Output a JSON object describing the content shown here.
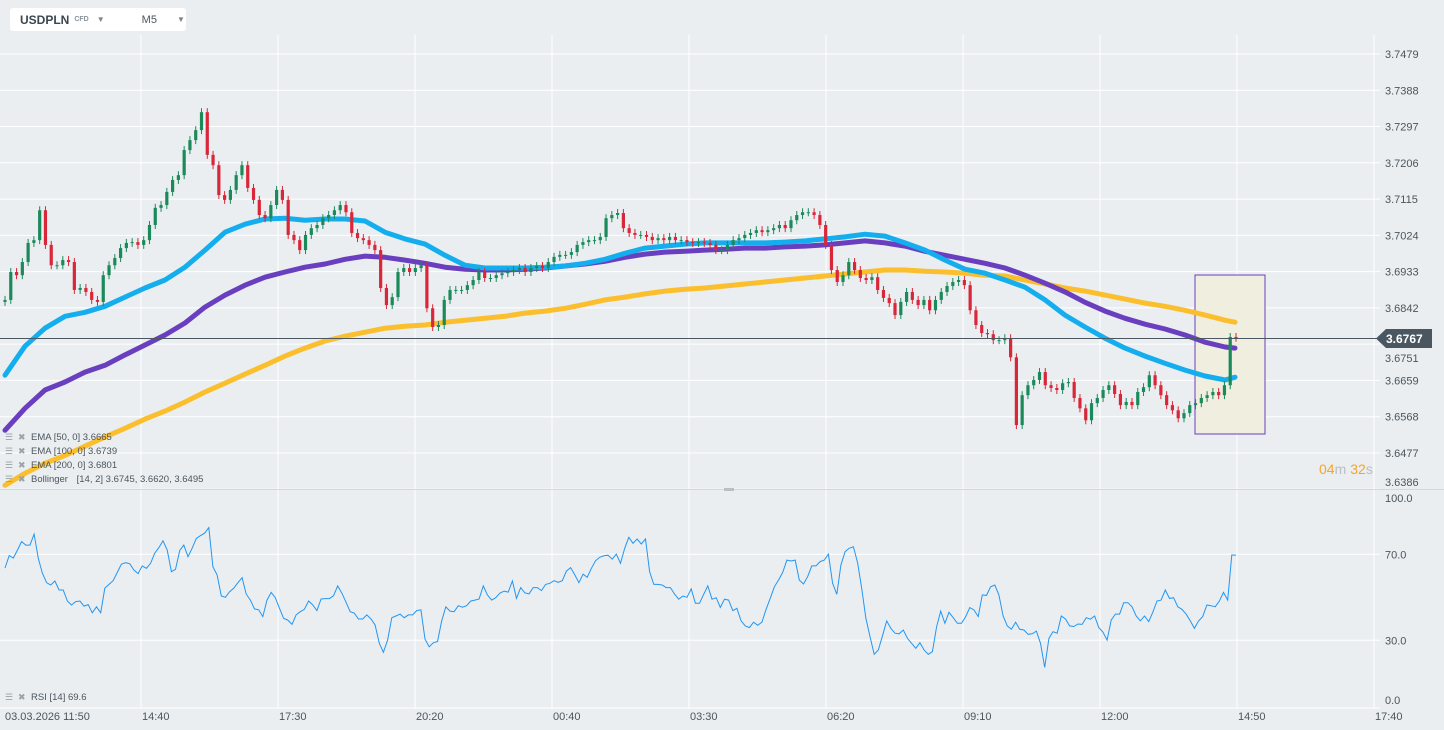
{
  "toolbar": {
    "symbol": "USDPLN",
    "instrument_type": "CFD",
    "timeframe": "M5"
  },
  "price_tag": {
    "value": "3.6767",
    "color": "#4a5761"
  },
  "countdown": {
    "minutes": "04",
    "min_unit": "m",
    "seconds": "32",
    "sec_unit": "s",
    "color": "#f5a623"
  },
  "legend": [
    {
      "label": "EMA",
      "params": "[50,  0]",
      "value": "3.6665"
    },
    {
      "label": "EMA",
      "params": "[100,  0]",
      "value": "3.6739"
    },
    {
      "label": "EMA",
      "params": "[200,  0]",
      "value": "3.6801"
    },
    {
      "label": "Bollinger",
      "params": "[14,  2]",
      "value": "3.6745,  3.6620,  3.6495"
    }
  ],
  "rsi_legend": {
    "label": "RSI",
    "params": "[14]",
    "value": "69.6"
  },
  "colors": {
    "up": "#1b8a5a",
    "down": "#d92638",
    "ema50": "#14aeee",
    "ema100": "#6a3fbf",
    "ema200": "#fbbf2d",
    "rsi": "#2196f3",
    "highlight_fill": "#efeedf",
    "highlight_border": "#6a3fbf"
  },
  "chart_data": [
    {
      "type": "candlestick",
      "title": "USDPLN",
      "x_ticks": [
        "03.03.2026  11:50",
        "14:40",
        "17:30",
        "20:20",
        "00:40",
        "03:30",
        "06:20",
        "09:10",
        "12:00",
        "14:50",
        "17:40"
      ],
      "y_ticks": [
        "3.7479",
        "3.7388",
        "3.7297",
        "3.7206",
        "3.7115",
        "3.7024",
        "3.6933",
        "3.6842",
        "3.6751",
        "3.6659",
        "3.6568",
        "3.6477",
        "3.6386"
      ],
      "ylim": [
        3.6386,
        3.7479
      ],
      "grid": true,
      "last_price": 3.6767,
      "closes": [
        3.6862,
        3.6932,
        3.6924,
        3.6957,
        3.7005,
        3.7012,
        3.7087,
        3.7,
        3.6949,
        3.6949,
        3.6962,
        3.6957,
        3.6887,
        3.6892,
        3.6882,
        3.6862,
        3.6857,
        3.6924,
        3.6949,
        3.6967,
        3.6992,
        3.7005,
        3.7007,
        3.7,
        3.7012,
        3.705,
        3.7093,
        3.71,
        3.7133,
        3.7163,
        3.7175,
        3.7238,
        3.7263,
        3.7288,
        3.7333,
        3.7226,
        3.72,
        3.7125,
        3.7113,
        3.7138,
        3.7175,
        3.72,
        3.7143,
        3.7113,
        3.7075,
        3.7067,
        3.71,
        3.7138,
        3.7113,
        3.7025,
        3.7012,
        3.6987,
        3.7025,
        3.7042,
        3.705,
        3.7067,
        3.7075,
        3.7087,
        3.71,
        3.7082,
        3.703,
        3.7017,
        3.7012,
        3.7,
        3.6987,
        3.6892,
        3.6849,
        3.6869,
        3.6932,
        3.6942,
        3.6932,
        3.6942,
        3.6949,
        3.6841,
        3.6794,
        3.6799,
        3.6862,
        3.6887,
        3.6887,
        3.6887,
        3.6899,
        3.6912,
        3.6932,
        3.6917,
        3.6917,
        3.6924,
        3.6929,
        3.6932,
        3.6937,
        3.6942,
        3.6932,
        3.6942,
        3.6947,
        3.6942,
        3.6957,
        3.697,
        3.6975,
        3.6975,
        3.6982,
        3.7,
        3.7007,
        3.7012,
        3.7012,
        3.702,
        3.7067,
        3.7075,
        3.708,
        3.7042,
        3.703,
        3.7025,
        3.7025,
        3.702,
        3.7012,
        3.7017,
        3.7012,
        3.702,
        3.7012,
        3.7012,
        3.7007,
        3.7005,
        3.7007,
        3.7005,
        3.7,
        3.6987,
        3.6987,
        3.7,
        3.7012,
        3.7017,
        3.7025,
        3.703,
        3.7037,
        3.7032,
        3.7037,
        3.7042,
        3.705,
        3.7042,
        3.7062,
        3.7075,
        3.7082,
        3.7082,
        3.7075,
        3.705,
        3.7,
        3.6937,
        3.6907,
        3.6924,
        3.6957,
        3.6937,
        3.6917,
        3.6912,
        3.6919,
        3.6887,
        3.6867,
        3.6854,
        3.6824,
        3.6857,
        3.6882,
        3.6862,
        3.6849,
        3.6862,
        3.6836,
        3.6862,
        3.6882,
        3.6897,
        3.6907,
        3.6912,
        3.6899,
        3.6836,
        3.6799,
        3.6779,
        3.6776,
        3.6761,
        3.6761,
        3.6766,
        3.6718,
        3.6548,
        3.6623,
        3.6648,
        3.6661,
        3.6681,
        3.6648,
        3.6641,
        3.6636,
        3.6653,
        3.6656,
        3.6616,
        3.659,
        3.656,
        3.6603,
        3.6616,
        3.6636,
        3.6648,
        3.6626,
        3.6598,
        3.6606,
        3.6598,
        3.6631,
        3.6643,
        3.6673,
        3.6648,
        3.6623,
        3.6598,
        3.6585,
        3.6565,
        3.6578,
        3.6598,
        3.6603,
        3.6616,
        3.6623,
        3.6631,
        3.6623,
        3.6648,
        3.6769,
        3.6767
      ],
      "series": [
        {
          "name": "EMA [50, 0]",
          "values": [
            3.6673,
            3.6746,
            3.6791,
            3.6821,
            3.6831,
            3.6846,
            3.6869,
            3.6892,
            3.6912,
            3.6944,
            3.6987,
            3.7032,
            3.7052,
            3.7065,
            3.7067,
            3.7062,
            3.7065,
            3.7065,
            3.706,
            3.7032,
            3.7015,
            3.7002,
            3.6974,
            3.6949,
            3.6942,
            3.6942,
            3.6942,
            3.6944,
            3.6947,
            3.6954,
            3.6964,
            3.6979,
            3.6992,
            3.6997,
            3.7002,
            3.7005,
            3.7005,
            3.7005,
            3.7005,
            3.7007,
            3.701,
            3.7015,
            3.702,
            3.7027,
            3.7022,
            3.7005,
            3.6987,
            3.6962,
            3.6939,
            3.6929,
            3.6912,
            3.6894,
            3.6862,
            3.6824,
            3.6794,
            3.6766,
            3.6741,
            3.6721,
            3.6703,
            3.6686,
            3.6671,
            3.6661,
            3.6668
          ]
        },
        {
          "name": "EMA [100, 0]",
          "values": [
            3.6535,
            3.659,
            3.6636,
            3.6656,
            3.6681,
            3.6698,
            3.6724,
            3.6749,
            3.6774,
            3.6804,
            3.6844,
            3.6874,
            3.6899,
            3.6919,
            3.6932,
            3.6944,
            3.6952,
            3.6964,
            3.6972,
            3.6969,
            3.6962,
            3.6954,
            3.6944,
            3.6939,
            3.6937,
            3.6937,
            3.6939,
            3.6942,
            3.6947,
            3.6952,
            3.6959,
            3.6969,
            3.6977,
            3.6982,
            3.6984,
            3.6987,
            3.6989,
            3.6992,
            3.6992,
            3.6995,
            3.6997,
            3.7,
            3.7005,
            3.701,
            3.7005,
            3.6997,
            3.6984,
            3.6974,
            3.6964,
            3.6954,
            3.6942,
            3.6924,
            3.6904,
            3.6882,
            3.6856,
            3.6834,
            3.6816,
            3.6801,
            3.6789,
            3.6774,
            3.6756,
            3.6744,
            3.6741
          ]
        },
        {
          "name": "EMA [200, 0]",
          "values": [
            3.6397,
            3.6427,
            3.6452,
            3.6472,
            3.6495,
            3.6518,
            3.654,
            3.6563,
            3.6583,
            3.6606,
            3.6631,
            3.6653,
            3.6676,
            3.6698,
            3.6721,
            3.6741,
            3.6759,
            3.6771,
            3.6781,
            3.6791,
            3.6796,
            3.6799,
            3.6806,
            3.6811,
            3.6816,
            3.6821,
            3.6829,
            3.6834,
            3.6841,
            3.6851,
            3.6862,
            3.6869,
            3.6877,
            3.6884,
            3.6889,
            3.6892,
            3.6897,
            3.6902,
            3.6907,
            3.6912,
            3.6917,
            3.6922,
            3.6927,
            3.6932,
            3.6937,
            3.6937,
            3.6934,
            3.6932,
            3.6929,
            3.6924,
            3.6922,
            3.6912,
            3.6902,
            3.6892,
            3.6884,
            3.6874,
            3.6864,
            3.6854,
            3.6846,
            3.6836,
            3.6824,
            3.6811,
            3.6806
          ]
        }
      ]
    },
    {
      "type": "line",
      "title": "RSI [14]",
      "y_ticks": [
        "100.0",
        "70.0",
        "30.0",
        "0.0"
      ],
      "ylim": [
        0,
        100
      ],
      "grid": true,
      "values": [
        63.6,
        69.4,
        68.3,
        72,
        75.9,
        74.3,
        74.3,
        79.4,
        68.1,
        61.2,
        56.8,
        55.7,
        57.6,
        53.4,
        53.4,
        48.3,
        46.4,
        48,
        48.3,
        45.9,
        46.6,
        42.8,
        45.6,
        42.8,
        54.2,
        56,
        57.7,
        61.6,
        65.4,
        66.1,
        65.6,
        62.7,
        61,
        64.6,
        63.5,
        65.8,
        70.5,
        73.1,
        76.3,
        72,
        61.9,
        63,
        71.7,
        74.3,
        68.9,
        72.8,
        77.4,
        78.7,
        79.8,
        82.4,
        64.2,
        60.4,
        50.6,
        50,
        52.6,
        54.2,
        56.8,
        59.1,
        51.5,
        48.7,
        44.6,
        44.2,
        41,
        48.7,
        52.3,
        49.8,
        44.9,
        40.2,
        39.4,
        37.4,
        41.8,
        43.3,
        44.4,
        48.3,
        46.4,
        43.8,
        49.2,
        49.4,
        49.4,
        50.7,
        55.3,
        51.9,
        47.7,
        43.3,
        42.6,
        39.9,
        39.9,
        41.8,
        39.9,
        37.1,
        28.6,
        24.4,
        30.1,
        40.5,
        41.3,
        42.2,
        40.5,
        41.8,
        41.8,
        43.8,
        44.2,
        30.6,
        27,
        28.9,
        29.4,
        39,
        45.6,
        43.6,
        43.3,
        46.1,
        45.4,
        46.1,
        48.3,
        48.7,
        49.2,
        55.3,
        51.1,
        48.7,
        49.8,
        51.9,
        52.9,
        52.4,
        57.6,
        49.5,
        54.5,
        52.1,
        51.6,
        54.5,
        54.5,
        53.1,
        56,
        56.5,
        57.7,
        57,
        57.7,
        62.2,
        63.8,
        60.4,
        56.8,
        60.8,
        59.3,
        63.5,
        67,
        68.6,
        69.3,
        69.6,
        67.7,
        70.1,
        65.8,
        72.8,
        77.9,
        75.1,
        77.1,
        74.8,
        77.1,
        61.9,
        56,
        56,
        55.7,
        54.5,
        54.5,
        51.5,
        49.1,
        50.6,
        50,
        53.9,
        47.2,
        47.2,
        51.4,
        55.3,
        49.1,
        49.8,
        45.3,
        49.1,
        48.7,
        43.8,
        44.9,
        39,
        36.7,
        35.9,
        38.4,
        37,
        38.4,
        44.4,
        49.5,
        54.9,
        58,
        61.6,
        67.3,
        66.9,
        67.3,
        58,
        56.2,
        59.6,
        64.6,
        64.6,
        66.6,
        67.3,
        70.1,
        56.5,
        51.4,
        65,
        71.2,
        72.8,
        73.5,
        66.1,
        54.2,
        40.2,
        31.7,
        23.5,
        25.5,
        32.1,
        39,
        35.6,
        33.3,
        33,
        34.8,
        30.9,
        28.6,
        26.3,
        28.9,
        25.5,
        23.5,
        24.7,
        36.3,
        43.6,
        37.9,
        43,
        40.5,
        37.9,
        37.9,
        41,
        45.2,
        44.1,
        41,
        51.1,
        50.9,
        54.9,
        55.7,
        51.1,
        41.3,
        36.7,
        35.1,
        38.4,
        35.1,
        34.8,
        32.8,
        33,
        34.3,
        28.6,
        17.4,
        30.9,
        34,
        33.3,
        41.3,
        39.9,
        36.7,
        36.4,
        37.6,
        37.4,
        40.5,
        39.8,
        41.3,
        35.9,
        33.8,
        30.1,
        39.4,
        42.2,
        42.2,
        47.5,
        47.5,
        45.6,
        41.3,
        39,
        41.3,
        38.7,
        43,
        48.3,
        48.7,
        53.4,
        49.5,
        49.8,
        45.6,
        44.4,
        42.2,
        39,
        35.6,
        39,
        41,
        46.4,
        46.1,
        45.6,
        48.3,
        52.3,
        48.7,
        69.7,
        69.6
      ]
    }
  ]
}
